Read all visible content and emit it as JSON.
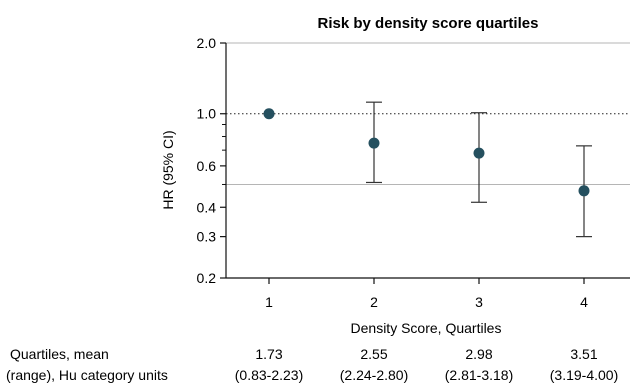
{
  "chart_data": {
    "type": "scatter",
    "title": "Risk by density score quartiles",
    "xlabel": "Density Score, Quartiles",
    "ylabel": "HR (95% CI)",
    "y_scale": "log",
    "ylim": [
      0.2,
      2.0
    ],
    "y_ticks": [
      "2.0",
      "1.0",
      "0.6",
      "0.4",
      "0.3",
      "0.2"
    ],
    "y_tick_values": [
      2.0,
      1.0,
      0.6,
      0.4,
      0.3,
      0.2
    ],
    "y_minor_ticks": [
      0.9,
      0.8,
      0.7,
      0.5
    ],
    "reference_lines": [
      {
        "value": 1.0,
        "style": "dotted"
      },
      {
        "value": 0.5,
        "style": "solid"
      }
    ],
    "categories": [
      "1",
      "2",
      "3",
      "4"
    ],
    "points": [
      {
        "x": "1",
        "hr": 1.0,
        "lower": null,
        "upper": null
      },
      {
        "x": "2",
        "hr": 0.75,
        "lower": 0.51,
        "upper": 1.12
      },
      {
        "x": "3",
        "hr": 0.68,
        "lower": 0.42,
        "upper": 1.01
      },
      {
        "x": "4",
        "hr": 0.47,
        "lower": 0.3,
        "upper": 0.73
      }
    ],
    "table": {
      "row_label_line1": "Quartiles, mean",
      "row_label_line2": "(range), Hu category units",
      "means": [
        "1.73",
        "2.55",
        "2.98",
        "3.51"
      ],
      "ranges": [
        "(0.83-2.23)",
        "(2.24-2.80)",
        "(2.81-3.18)",
        "(3.19-4.00)"
      ]
    },
    "colors": {
      "point": "#25505f",
      "axis": "#111111",
      "gridline": "#b5b5b5",
      "error_bar": "#333333"
    }
  }
}
